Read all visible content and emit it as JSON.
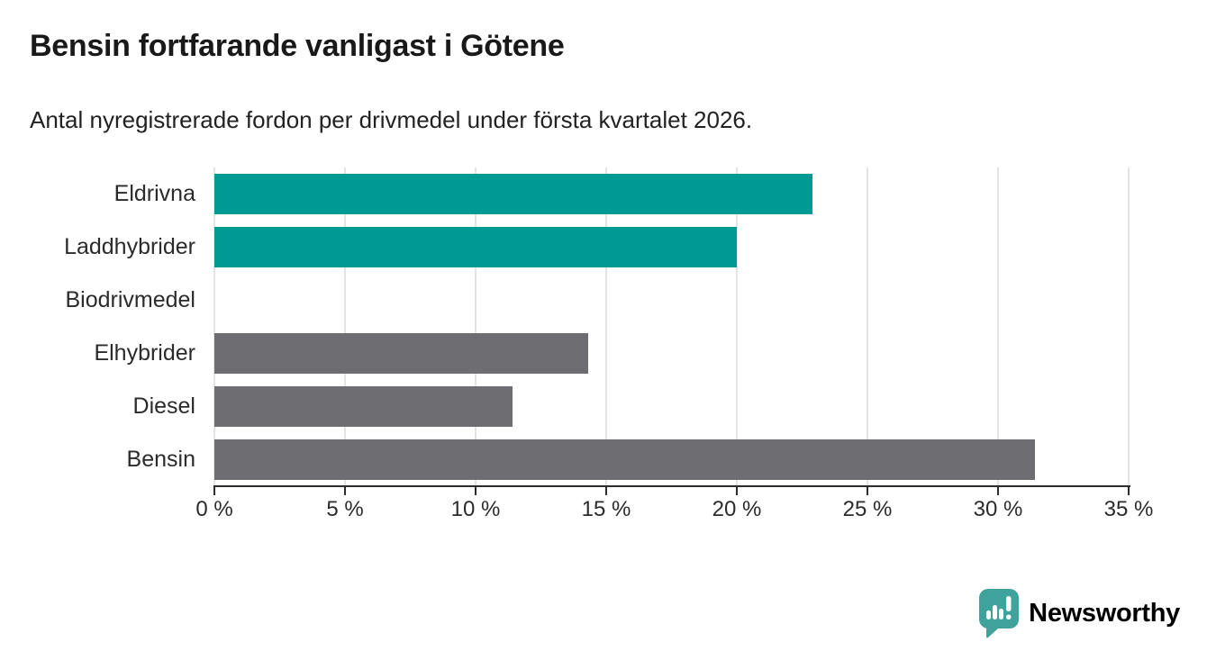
{
  "header": {
    "title": "Bensin fortfarande vanligast i Götene",
    "subtitle": "Antal nyregistrerade fordon per drivmedel under första kvartalet 2026."
  },
  "chart_data": {
    "type": "bar",
    "orientation": "horizontal",
    "title": "Bensin fortfarande vanligast i Götene",
    "subtitle": "Antal nyregistrerade fordon per drivmedel under första kvartalet 2026.",
    "categories": [
      "Eldrivna",
      "Laddhybrider",
      "Biodrivmedel",
      "Elhybrider",
      "Diesel",
      "Bensin"
    ],
    "values": [
      22.9,
      20.0,
      0,
      14.3,
      11.4,
      31.4
    ],
    "value_unit": "%",
    "bar_colors": [
      "#009a94",
      "#009a94",
      "#6d6d72",
      "#6d6d72",
      "#6d6d72",
      "#6d6d72"
    ],
    "x_tick_values": [
      0,
      5,
      10,
      15,
      20,
      25,
      30,
      35
    ],
    "x_tick_labels": [
      "0 %",
      "5 %",
      "10 %",
      "15 %",
      "20 %",
      "25 %",
      "30 %",
      "35 %"
    ],
    "xlim": [
      0,
      35
    ],
    "grid": "vertical",
    "legend": false
  },
  "colors": {
    "highlight": "#009a94",
    "neutral": "#6d6d72",
    "gridline": "#e4e4e4",
    "axis": "#2d2d2d",
    "title_text": "#191919",
    "label_text": "#2b2b2b",
    "brand_teal": "#3fa29b"
  },
  "footer": {
    "brand_name": "Newsworthy",
    "logo_icon": "newsworthy-pin-barchart-icon"
  }
}
